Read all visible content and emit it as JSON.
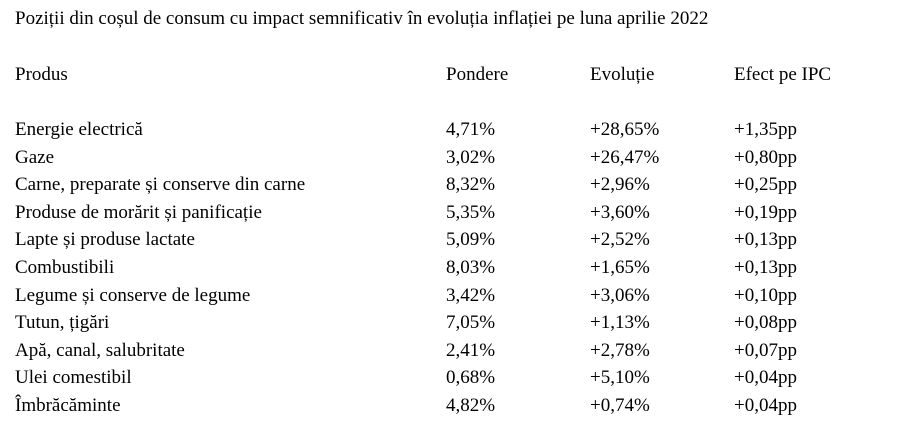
{
  "title": "Poziții din coșul de consum cu impact semnificativ în evoluția inflației pe luna aprilie 2022",
  "table": {
    "headers": [
      "Produs",
      "Pondere",
      "Evoluție",
      "Efect pe IPC"
    ],
    "rows": [
      [
        "Energie electrică",
        "4,71%",
        "+28,65%",
        "+1,35pp"
      ],
      [
        "Gaze",
        "3,02%",
        "+26,47%",
        "+0,80pp"
      ],
      [
        "Carne, preparate și conserve din carne",
        "8,32%",
        "+2,96%",
        "+0,25pp"
      ],
      [
        "Produse de morărit și panificație",
        "5,35%",
        "+3,60%",
        "+0,19pp"
      ],
      [
        "Lapte și produse lactate",
        "5,09%",
        "+2,52%",
        "+0,13pp"
      ],
      [
        "Combustibili",
        "8,03%",
        "+1,65%",
        "+0,13pp"
      ],
      [
        "Legume și conserve de legume",
        "3,42%",
        "+3,06%",
        "+0,10pp"
      ],
      [
        "Tutun, țigări",
        "7,05%",
        "+1,13%",
        "+0,08pp"
      ],
      [
        "Apă, canal, salubritate",
        "2,41%",
        "+2,78%",
        "+0,07pp"
      ],
      [
        "Ulei comestibil",
        "0,68%",
        "+5,10%",
        "+0,04pp"
      ],
      [
        "Îmbrăcăminte",
        "4,82%",
        "+0,74%",
        "+0,04pp"
      ]
    ]
  }
}
